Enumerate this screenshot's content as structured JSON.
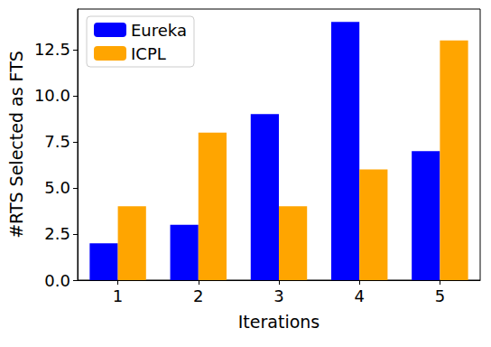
{
  "chart_data": {
    "type": "bar",
    "categories": [
      "1",
      "2",
      "3",
      "4",
      "5"
    ],
    "x_label": "Iterations",
    "y_label": "#RTS Selected as FTS",
    "series": [
      {
        "name": "Eureka",
        "color": "#0000ff",
        "values": [
          2,
          3,
          9,
          14,
          7
        ]
      },
      {
        "name": "ICPL",
        "color": "#ffa500",
        "values": [
          4,
          8,
          4,
          6,
          13
        ]
      }
    ],
    "ylim": [
      0,
      14.7
    ],
    "yticks": [
      {
        "value": 0,
        "label": "0.0"
      },
      {
        "value": 2.5,
        "label": "2.5"
      },
      {
        "value": 5,
        "label": "5.0"
      },
      {
        "value": 7.5,
        "label": "7.5"
      },
      {
        "value": 10,
        "label": "10.0"
      },
      {
        "value": 12.5,
        "label": "12.5"
      }
    ],
    "grid": false,
    "legend": "upper left"
  }
}
